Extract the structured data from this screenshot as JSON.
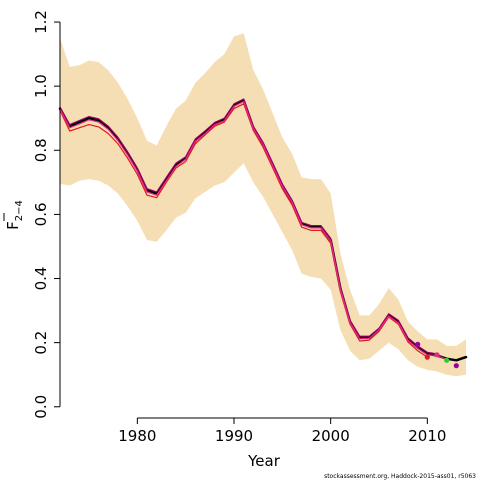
{
  "chart_data": {
    "type": "line",
    "xlabel": "Year",
    "ylabel_main": "F",
    "ylabel_sub": "2−4",
    "xlim": [
      1972,
      2014
    ],
    "ylim": [
      0,
      1.2
    ],
    "xticks": [
      1980,
      1990,
      2000,
      2010
    ],
    "yticks": [
      0.0,
      0.2,
      0.4,
      0.6,
      0.8,
      1.0,
      1.2
    ],
    "ytick_labels": [
      "0.0",
      "0.2",
      "0.4",
      "0.6",
      "0.8",
      "1.0",
      "1.2"
    ],
    "band": {
      "x": [
        1972,
        1973,
        1974,
        1975,
        1976,
        1977,
        1978,
        1979,
        1980,
        1981,
        1982,
        1983,
        1984,
        1985,
        1986,
        1987,
        1988,
        1989,
        1990,
        1991,
        1992,
        1993,
        1994,
        1995,
        1996,
        1997,
        1998,
        1999,
        2000,
        2001,
        2002,
        2003,
        2004,
        2005,
        2006,
        2007,
        2008,
        2009,
        2010,
        2011,
        2012,
        2013,
        2014
      ],
      "upper": [
        1.15,
        1.06,
        1.065,
        1.08,
        1.075,
        1.05,
        1.01,
        0.96,
        0.9,
        0.83,
        0.815,
        0.875,
        0.93,
        0.955,
        1.01,
        1.04,
        1.075,
        1.1,
        1.155,
        1.165,
        1.05,
        0.99,
        0.915,
        0.84,
        0.79,
        0.715,
        0.71,
        0.71,
        0.665,
        0.48,
        0.365,
        0.285,
        0.285,
        0.32,
        0.37,
        0.335,
        0.265,
        0.235,
        0.21,
        0.21,
        0.19,
        0.19,
        0.21
      ],
      "lower": [
        0.695,
        0.69,
        0.705,
        0.71,
        0.705,
        0.69,
        0.665,
        0.625,
        0.58,
        0.52,
        0.515,
        0.55,
        0.59,
        0.605,
        0.65,
        0.67,
        0.69,
        0.7,
        0.73,
        0.76,
        0.7,
        0.655,
        0.6,
        0.545,
        0.49,
        0.415,
        0.405,
        0.4,
        0.365,
        0.24,
        0.175,
        0.145,
        0.15,
        0.175,
        0.2,
        0.18,
        0.145,
        0.125,
        0.115,
        0.11,
        0.1,
        0.095,
        0.1
      ]
    },
    "series": [
      {
        "color": "#000000",
        "width": 2.5,
        "x": [
          1972,
          1973,
          1974,
          1975,
          1976,
          1977,
          1978,
          1979,
          1980,
          1981,
          1982,
          1983,
          1984,
          1985,
          1986,
          1987,
          1988,
          1989,
          1990,
          1991,
          1992,
          1993,
          1994,
          1995,
          1996,
          1997,
          1998,
          1999,
          2000,
          2001,
          2002,
          2003,
          2004,
          2005,
          2006,
          2007,
          2008,
          2009,
          2010,
          2011,
          2012,
          2013,
          2014
        ],
        "y": [
          0.93,
          0.875,
          0.888,
          0.9,
          0.893,
          0.87,
          0.835,
          0.79,
          0.74,
          0.675,
          0.665,
          0.71,
          0.755,
          0.775,
          0.83,
          0.855,
          0.882,
          0.895,
          0.94,
          0.955,
          0.87,
          0.82,
          0.755,
          0.69,
          0.64,
          0.57,
          0.56,
          0.56,
          0.52,
          0.37,
          0.265,
          0.215,
          0.215,
          0.24,
          0.285,
          0.265,
          0.21,
          0.185,
          0.165,
          0.16,
          0.15,
          0.145,
          0.155
        ]
      },
      {
        "color": "#e31a1c",
        "width": 1.2,
        "x": [
          1972,
          1973,
          1974,
          1975,
          1976,
          1977,
          1978,
          1979,
          1980,
          1981,
          1982,
          1983,
          1984,
          1985,
          1986,
          1987,
          1988,
          1989,
          1990,
          1991,
          1992,
          1993,
          1994,
          1995,
          1996,
          1997,
          1998,
          1999,
          2000,
          2001,
          2002,
          2003,
          2004,
          2005,
          2006,
          2007,
          2008,
          2009,
          2010
        ],
        "y": [
          0.925,
          0.86,
          0.87,
          0.88,
          0.873,
          0.852,
          0.82,
          0.775,
          0.725,
          0.66,
          0.652,
          0.7,
          0.745,
          0.765,
          0.82,
          0.848,
          0.875,
          0.888,
          0.93,
          0.945,
          0.862,
          0.81,
          0.745,
          0.68,
          0.63,
          0.56,
          0.55,
          0.55,
          0.51,
          0.36,
          0.258,
          0.205,
          0.208,
          0.235,
          0.28,
          0.258,
          0.202,
          0.175,
          0.155
        ]
      },
      {
        "color": "#990066",
        "width": 1.2,
        "x": [
          1972,
          1973,
          1974,
          1975,
          1976,
          1977,
          1978,
          1979,
          1980,
          1981,
          1982,
          1983,
          1984,
          1985,
          1986,
          1987,
          1988,
          1989,
          1990,
          1991,
          1992,
          1993,
          1994,
          1995,
          1996,
          1997,
          1998,
          1999,
          2000,
          2001,
          2002,
          2003,
          2004,
          2005,
          2006,
          2007,
          2008,
          2009,
          2010,
          2011
        ],
        "y": [
          0.935,
          0.88,
          0.893,
          0.905,
          0.898,
          0.875,
          0.84,
          0.795,
          0.745,
          0.68,
          0.67,
          0.715,
          0.76,
          0.78,
          0.835,
          0.86,
          0.887,
          0.9,
          0.945,
          0.96,
          0.875,
          0.825,
          0.76,
          0.695,
          0.645,
          0.575,
          0.565,
          0.565,
          0.525,
          0.375,
          0.27,
          0.22,
          0.22,
          0.245,
          0.29,
          0.27,
          0.215,
          0.19,
          0.17,
          0.165
        ]
      },
      {
        "color": "#e7298a",
        "width": 1.2,
        "x": [
          1972,
          1973,
          1974,
          1975,
          1976,
          1977,
          1978,
          1979,
          1980,
          1981,
          1982,
          1983,
          1984,
          1985,
          1986,
          1987,
          1988,
          1989,
          1990,
          1991,
          1992,
          1993,
          1994,
          1995,
          1996,
          1997,
          1998,
          1999,
          2000,
          2001,
          2002,
          2003,
          2004,
          2005,
          2006,
          2007,
          2008,
          2009,
          2010,
          2011,
          2012
        ],
        "y": [
          0.928,
          0.87,
          0.882,
          0.895,
          0.888,
          0.865,
          0.83,
          0.785,
          0.735,
          0.67,
          0.66,
          0.705,
          0.75,
          0.772,
          0.828,
          0.852,
          0.88,
          0.892,
          0.937,
          0.952,
          0.868,
          0.818,
          0.752,
          0.688,
          0.638,
          0.568,
          0.558,
          0.558,
          0.518,
          0.368,
          0.263,
          0.212,
          0.213,
          0.24,
          0.283,
          0.262,
          0.207,
          0.182,
          0.162,
          0.16,
          0.148
        ]
      }
    ],
    "points": [
      {
        "x": 2009,
        "y": 0.195,
        "color": "#990099"
      },
      {
        "x": 2010,
        "y": 0.155,
        "color": "#e31a1c"
      },
      {
        "x": 2011,
        "y": 0.162,
        "color": "#e7298a"
      },
      {
        "x": 2012,
        "y": 0.145,
        "color": "#33cc33"
      },
      {
        "x": 2013,
        "y": 0.128,
        "color": "#990099"
      }
    ],
    "band_color": "#f5deb3",
    "footer": "stockassessment.org, Haddock-2015-ass01, r5063"
  }
}
